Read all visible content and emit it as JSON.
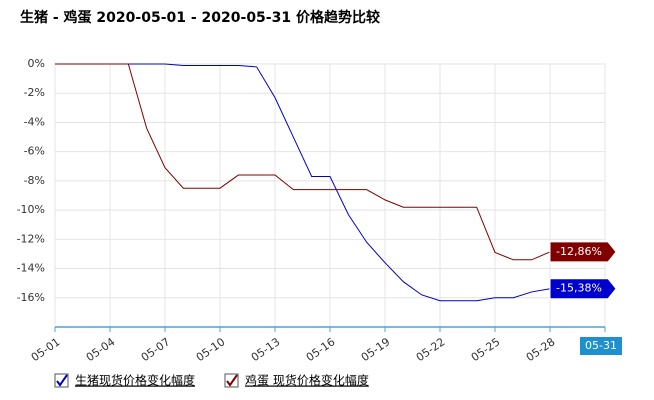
{
  "chart_data": {
    "type": "line",
    "title": "生猪 - 鸡蛋 2020-05-01 - 2020-05-31 价格趋势比较",
    "categories": [
      "05-01",
      null,
      null,
      "05-04",
      null,
      null,
      "05-07",
      null,
      null,
      "05-10",
      null,
      null,
      "05-13",
      null,
      null,
      "05-16",
      null,
      null,
      "05-19",
      null,
      null,
      "05-22",
      null,
      null,
      "05-25",
      null,
      null,
      "05-28",
      null,
      null,
      "05-31"
    ],
    "series": [
      {
        "name": "生猪现货价格变化幅度",
        "color": "#0000cc",
        "values": [
          0,
          0,
          0,
          0,
          0,
          0,
          0,
          -0.1,
          -0.1,
          -0.1,
          -0.1,
          -0.2,
          -2.3,
          -5,
          -7.7,
          -7.7,
          -10.3,
          -12.2,
          -13.6,
          -14.9,
          -15.8,
          -16.2,
          -16.2,
          -16.2,
          -16,
          -16,
          -15.6,
          -15.38,
          null,
          null,
          null
        ],
        "value_labels": [
          null,
          null,
          null,
          null,
          null,
          null,
          null,
          null,
          null,
          null,
          null,
          null,
          null,
          null,
          null,
          null,
          null,
          null,
          null,
          null,
          null,
          null,
          null,
          null,
          null,
          null,
          null,
          "-15,38%",
          null,
          null,
          null
        ]
      },
      {
        "name": "鸡蛋 现货价格变化幅度",
        "color": "#800000",
        "values": [
          0,
          0,
          0,
          0,
          0,
          -4.4,
          -7.1,
          -8.5,
          -8.5,
          -8.5,
          -7.6,
          -7.6,
          -7.6,
          -8.6,
          -8.6,
          -8.6,
          -8.6,
          -8.6,
          -9.3,
          -9.8,
          -9.8,
          -9.8,
          -9.8,
          -9.8,
          -12.9,
          -13.4,
          -13.4,
          -12.86,
          null,
          null,
          null
        ],
        "value_labels": [
          null,
          null,
          null,
          null,
          null,
          null,
          null,
          null,
          null,
          null,
          null,
          null,
          null,
          null,
          null,
          null,
          null,
          null,
          null,
          null,
          null,
          null,
          null,
          null,
          null,
          null,
          null,
          "-12,86%",
          null,
          null,
          null
        ]
      }
    ],
    "ylim": [
      -18,
      0
    ],
    "yticks": [
      {
        "value": 0,
        "label": "0%"
      },
      {
        "value": -2,
        "label": "-2%"
      },
      {
        "value": -4,
        "label": "-4%"
      },
      {
        "value": -6,
        "label": "-6%"
      },
      {
        "value": -8,
        "label": "-8%"
      },
      {
        "value": -10,
        "label": "-10%"
      },
      {
        "value": -12,
        "label": "-12%"
      },
      {
        "value": -14,
        "label": "-14%"
      },
      {
        "value": -16,
        "label": "-16%"
      }
    ],
    "grid": true
  }
}
